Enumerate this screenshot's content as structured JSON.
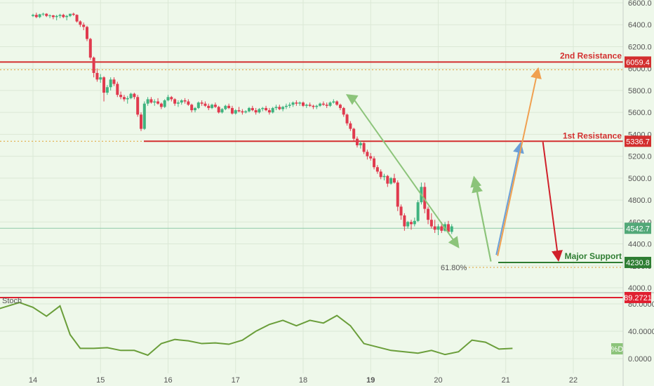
{
  "chart_data": [
    {
      "type": "candlestick",
      "price_ticks": [
        "6600.0",
        "6400.0",
        "6200.0",
        "6000.0",
        "5800.0",
        "5600.0",
        "5400.0",
        "5200.0",
        "5000.0",
        "4800.0",
        "4600.0",
        "4400.0",
        "4200.0",
        "4000.0"
      ],
      "x_ticks": [
        "14",
        "15",
        "16",
        "17",
        "18",
        "19",
        "20",
        "21",
        "22"
      ],
      "ylim": [
        3990,
        6640
      ],
      "levels": [
        {
          "label": "2nd Resistance",
          "value": "6059.4",
          "color": "#d32f2f"
        },
        {
          "label": "1st Resistance",
          "value": "5336.7",
          "color": "#d32f2f"
        },
        {
          "label": "Major Support",
          "value": "4230.8",
          "color": "#2e7d32"
        }
      ],
      "current_price": "4542.7",
      "fib_label": "61.80%",
      "candles": [
        [
          14,
          6480,
          6500,
          6470,
          6490
        ],
        [
          14.05,
          6490,
          6510,
          6460,
          6470
        ],
        [
          14.1,
          6470,
          6500,
          6460,
          6495
        ],
        [
          14.15,
          6495,
          6510,
          6480,
          6500
        ],
        [
          14.2,
          6500,
          6505,
          6470,
          6480
        ],
        [
          14.25,
          6480,
          6495,
          6460,
          6485
        ],
        [
          14.3,
          6485,
          6490,
          6450,
          6470
        ],
        [
          14.35,
          6470,
          6490,
          6440,
          6480
        ],
        [
          14.4,
          6480,
          6500,
          6460,
          6490
        ],
        [
          14.45,
          6490,
          6500,
          6460,
          6470
        ],
        [
          14.5,
          6470,
          6490,
          6440,
          6480
        ],
        [
          14.55,
          6480,
          6500,
          6470,
          6500
        ],
        [
          14.6,
          6500,
          6510,
          6480,
          6490
        ],
        [
          14.65,
          6490,
          6495,
          6420,
          6430
        ],
        [
          14.7,
          6430,
          6440,
          6380,
          6400
        ],
        [
          14.75,
          6400,
          6420,
          6350,
          6380
        ],
        [
          14.8,
          6380,
          6390,
          6250,
          6270
        ],
        [
          14.85,
          6270,
          6280,
          6080,
          6100
        ],
        [
          14.9,
          6100,
          6110,
          5920,
          5960
        ],
        [
          14.95,
          5960,
          6000,
          5880,
          5900
        ],
        [
          15,
          5900,
          5950,
          5870,
          5920
        ],
        [
          15.05,
          5920,
          5930,
          5700,
          5780
        ],
        [
          15.1,
          5780,
          5850,
          5760,
          5830
        ],
        [
          15.15,
          5830,
          5920,
          5800,
          5900
        ],
        [
          15.2,
          5900,
          5920,
          5840,
          5860
        ],
        [
          15.25,
          5860,
          5880,
          5740,
          5760
        ],
        [
          15.3,
          5760,
          5790,
          5720,
          5740
        ],
        [
          15.35,
          5740,
          5760,
          5700,
          5720
        ],
        [
          15.4,
          5720,
          5750,
          5680,
          5730
        ],
        [
          15.45,
          5730,
          5780,
          5720,
          5770
        ],
        [
          15.5,
          5770,
          5780,
          5720,
          5740
        ],
        [
          15.55,
          5740,
          5760,
          5560,
          5580
        ],
        [
          15.6,
          5580,
          5600,
          5430,
          5450
        ],
        [
          15.65,
          5450,
          5700,
          5440,
          5680
        ],
        [
          15.7,
          5680,
          5740,
          5660,
          5720
        ],
        [
          15.75,
          5720,
          5740,
          5680,
          5690
        ],
        [
          15.8,
          5690,
          5720,
          5660,
          5700
        ],
        [
          15.85,
          5700,
          5730,
          5670,
          5680
        ],
        [
          15.9,
          5680,
          5690,
          5630,
          5650
        ],
        [
          15.95,
          5650,
          5720,
          5640,
          5710
        ],
        [
          16,
          5710,
          5760,
          5700,
          5740
        ],
        [
          16.05,
          5740,
          5750,
          5700,
          5720
        ],
        [
          16.1,
          5720,
          5730,
          5660,
          5680
        ],
        [
          16.15,
          5680,
          5710,
          5650,
          5690
        ],
        [
          16.2,
          5690,
          5720,
          5670,
          5710
        ],
        [
          16.25,
          5710,
          5730,
          5680,
          5700
        ],
        [
          16.3,
          5700,
          5720,
          5660,
          5670
        ],
        [
          16.35,
          5670,
          5680,
          5600,
          5620
        ],
        [
          16.4,
          5620,
          5650,
          5600,
          5640
        ],
        [
          16.45,
          5640,
          5700,
          5630,
          5690
        ],
        [
          16.5,
          5690,
          5710,
          5660,
          5680
        ],
        [
          16.55,
          5680,
          5700,
          5650,
          5660
        ],
        [
          16.6,
          5660,
          5680,
          5620,
          5640
        ],
        [
          16.65,
          5640,
          5680,
          5630,
          5670
        ],
        [
          16.7,
          5670,
          5690,
          5640,
          5650
        ],
        [
          16.75,
          5650,
          5660,
          5590,
          5600
        ],
        [
          16.8,
          5600,
          5640,
          5590,
          5630
        ],
        [
          16.85,
          5630,
          5670,
          5620,
          5660
        ],
        [
          16.9,
          5660,
          5680,
          5630,
          5640
        ],
        [
          16.95,
          5640,
          5660,
          5580,
          5590
        ],
        [
          17,
          5590,
          5630,
          5580,
          5620
        ],
        [
          17.05,
          5620,
          5650,
          5600,
          5610
        ],
        [
          17.1,
          5610,
          5630,
          5580,
          5600
        ],
        [
          17.15,
          5600,
          5620,
          5590,
          5610
        ],
        [
          17.2,
          5610,
          5650,
          5600,
          5640
        ],
        [
          17.25,
          5640,
          5660,
          5610,
          5620
        ],
        [
          17.3,
          5620,
          5640,
          5580,
          5600
        ],
        [
          17.35,
          5600,
          5640,
          5590,
          5630
        ],
        [
          17.4,
          5630,
          5650,
          5610,
          5640
        ],
        [
          17.45,
          5640,
          5660,
          5610,
          5620
        ],
        [
          17.5,
          5620,
          5640,
          5580,
          5600
        ],
        [
          17.55,
          5600,
          5650,
          5590,
          5640
        ],
        [
          17.6,
          5640,
          5670,
          5620,
          5650
        ],
        [
          17.65,
          5650,
          5670,
          5620,
          5630
        ],
        [
          17.7,
          5630,
          5660,
          5610,
          5650
        ],
        [
          17.75,
          5650,
          5680,
          5630,
          5660
        ],
        [
          17.8,
          5660,
          5690,
          5640,
          5670
        ],
        [
          17.85,
          5670,
          5700,
          5650,
          5690
        ],
        [
          17.9,
          5690,
          5710,
          5660,
          5680
        ],
        [
          17.95,
          5680,
          5700,
          5660,
          5690
        ],
        [
          18,
          5690,
          5700,
          5650,
          5660
        ],
        [
          18.05,
          5660,
          5680,
          5640,
          5670
        ],
        [
          18.1,
          5670,
          5690,
          5650,
          5660
        ],
        [
          18.15,
          5660,
          5670,
          5630,
          5650
        ],
        [
          18.2,
          5650,
          5670,
          5630,
          5660
        ],
        [
          18.25,
          5660,
          5690,
          5650,
          5680
        ],
        [
          18.3,
          5680,
          5700,
          5660,
          5670
        ],
        [
          18.35,
          5670,
          5690,
          5640,
          5660
        ],
        [
          18.4,
          5660,
          5700,
          5650,
          5690
        ],
        [
          18.45,
          5690,
          5720,
          5680,
          5700
        ],
        [
          18.5,
          5700,
          5710,
          5660,
          5670
        ],
        [
          18.55,
          5670,
          5680,
          5620,
          5640
        ],
        [
          18.6,
          5640,
          5650,
          5560,
          5580
        ],
        [
          18.65,
          5580,
          5590,
          5480,
          5500
        ],
        [
          18.7,
          5500,
          5520,
          5430,
          5450
        ],
        [
          18.75,
          5450,
          5460,
          5340,
          5360
        ],
        [
          18.8,
          5360,
          5380,
          5280,
          5300
        ],
        [
          18.85,
          5300,
          5340,
          5270,
          5320
        ],
        [
          18.9,
          5320,
          5330,
          5220,
          5240
        ],
        [
          18.95,
          5240,
          5260,
          5170,
          5200
        ],
        [
          19,
          5200,
          5230,
          5160,
          5180
        ],
        [
          19.05,
          5180,
          5200,
          5080,
          5100
        ],
        [
          19.1,
          5100,
          5120,
          5040,
          5060
        ],
        [
          19.15,
          5060,
          5080,
          4990,
          5010
        ],
        [
          19.2,
          5010,
          5040,
          4980,
          5020
        ],
        [
          19.25,
          5020,
          5030,
          4920,
          4950
        ],
        [
          19.3,
          4950,
          5010,
          4940,
          5000
        ],
        [
          19.35,
          5000,
          5040,
          4950,
          4960
        ],
        [
          19.4,
          4960,
          4980,
          4700,
          4740
        ],
        [
          19.45,
          4740,
          4760,
          4620,
          4660
        ],
        [
          19.5,
          4660,
          4680,
          4520,
          4560
        ],
        [
          19.55,
          4560,
          4610,
          4540,
          4600
        ],
        [
          19.6,
          4600,
          4620,
          4530,
          4580
        ],
        [
          19.65,
          4580,
          4640,
          4560,
          4610
        ],
        [
          19.7,
          4610,
          4800,
          4600,
          4780
        ],
        [
          19.75,
          4780,
          4960,
          4760,
          4920
        ],
        [
          19.8,
          4920,
          4960,
          4680,
          4720
        ],
        [
          19.85,
          4720,
          4740,
          4580,
          4620
        ],
        [
          19.9,
          4620,
          4680,
          4540,
          4560
        ],
        [
          19.95,
          4560,
          4620,
          4500,
          4530
        ],
        [
          20,
          4530,
          4580,
          4480,
          4560
        ],
        [
          20.05,
          4560,
          4600,
          4500,
          4520
        ],
        [
          20.1,
          4520,
          4600,
          4510,
          4580
        ],
        [
          20.15,
          4580,
          4610,
          4500,
          4510
        ],
        [
          20.2,
          4510,
          4580,
          4490,
          4560
        ]
      ]
    },
    {
      "type": "line",
      "name": "Stoch",
      "badge": "%D",
      "level_label": "89.2721",
      "y_ticks": [
        "80.0000",
        "40.0000",
        "0.0000"
      ],
      "ylim": [
        -8,
        95
      ],
      "x": [
        13.5,
        13.8,
        14.0,
        14.2,
        14.4,
        14.55,
        14.7,
        14.9,
        15.1,
        15.3,
        15.5,
        15.7,
        15.9,
        16.1,
        16.3,
        16.5,
        16.7,
        16.9,
        17.1,
        17.3,
        17.5,
        17.7,
        17.9,
        18.1,
        18.3,
        18.5,
        18.7,
        18.9,
        19.1,
        19.3,
        19.5,
        19.7,
        19.9,
        20.1,
        20.3,
        20.5,
        20.7,
        20.9,
        21.1
      ],
      "values": [
        73,
        82,
        75,
        62,
        77,
        35,
        15,
        15,
        16,
        12,
        12,
        5,
        22,
        28,
        26,
        22,
        23,
        21,
        27,
        40,
        50,
        56,
        48,
        56,
        52,
        63,
        48,
        22,
        17,
        12,
        10,
        8,
        12,
        6,
        10,
        27,
        24,
        14,
        15
      ]
    }
  ]
}
